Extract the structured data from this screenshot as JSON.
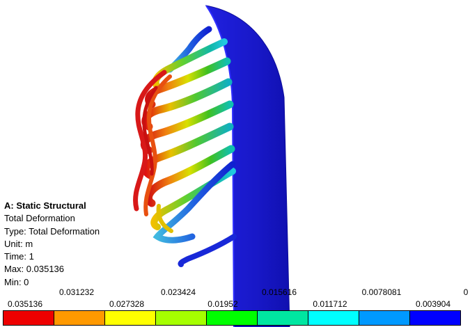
{
  "info": {
    "title": "A: Static Structural",
    "result_name": "Total Deformation",
    "type_line": "Type: Total Deformation",
    "unit_line": "Unit: m",
    "time_line": "Time: 1",
    "max_line": "Max: 0.035136",
    "min_line": "Min: 0"
  },
  "legend": {
    "top_labels": [
      "0.031232",
      "0.023424",
      "0.015616",
      "0.0078081",
      "0"
    ],
    "bottom_labels": [
      "0.035136",
      "0.027328",
      "0.01952",
      "0.011712",
      "0.003904"
    ],
    "colors": [
      "#ee0000",
      "#ff9900",
      "#ffff00",
      "#a6ff00",
      "#00ff00",
      "#00e6a1",
      "#00ffff",
      "#0099ff",
      "#0000ff"
    ]
  },
  "colors": {
    "support_plate": "#1a1ad6",
    "support_edge": "#0c0c9a",
    "rib_red": "#e01010",
    "rib_orange": "#f08010",
    "rib_yellow": "#e6e600",
    "rib_green": "#40c020",
    "rib_teal": "#10b0a0",
    "rib_cyan": "#20c0e0",
    "rib_blue": "#1030d0"
  }
}
